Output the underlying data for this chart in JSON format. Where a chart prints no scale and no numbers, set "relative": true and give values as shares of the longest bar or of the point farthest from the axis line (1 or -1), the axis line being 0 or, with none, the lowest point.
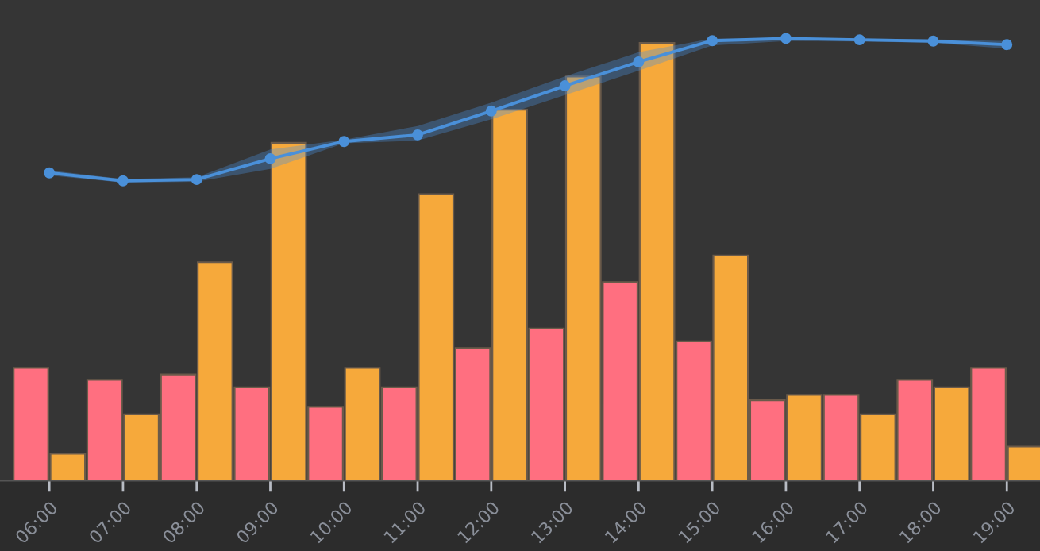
{
  "chart_data": {
    "type": "bar",
    "relative": true,
    "grid": false,
    "legend": false,
    "xlim": [
      5.33,
      19.45
    ],
    "xticks": [
      {
        "value": 6,
        "label": "06:00"
      },
      {
        "value": 7,
        "label": "07:00"
      },
      {
        "value": 8,
        "label": "08:00"
      },
      {
        "value": 9,
        "label": "09:00"
      },
      {
        "value": 10,
        "label": "10:00"
      },
      {
        "value": 11,
        "label": "11:00"
      },
      {
        "value": 12,
        "label": "12:00"
      },
      {
        "value": 13,
        "label": "13:00"
      },
      {
        "value": 14,
        "label": "14:00"
      },
      {
        "value": 15,
        "label": "15:00"
      },
      {
        "value": 16,
        "label": "16:00"
      },
      {
        "value": 17,
        "label": "17:00"
      },
      {
        "value": 18,
        "label": "18:00"
      },
      {
        "value": 19,
        "label": "19:00"
      }
    ],
    "series": [
      {
        "color": "#ff6f80",
        "x": [
          5.75,
          6.75,
          7.75,
          8.75,
          9.75,
          10.75,
          11.75,
          12.75,
          13.75,
          14.75,
          15.75,
          16.75,
          17.75,
          18.75
        ],
        "values": [
          0.255,
          0.228,
          0.24,
          0.211,
          0.167,
          0.211,
          0.3,
          0.344,
          0.449,
          0.315,
          0.182,
          0.194,
          0.228,
          0.255
        ]
      },
      {
        "color": "#f6a93b",
        "x": [
          6.25,
          7.25,
          8.25,
          9.25,
          10.25,
          11.25,
          12.25,
          13.25,
          14.25,
          15.25,
          16.25,
          17.25,
          18.25,
          19.25
        ],
        "values": [
          0.061,
          0.15,
          0.494,
          0.764,
          0.255,
          0.648,
          0.839,
          0.914,
          0.99,
          0.509,
          0.194,
          0.15,
          0.211,
          0.077
        ]
      },
      {
        "type": "line",
        "color": "#4a90d9",
        "marker": "circle",
        "line_style": "solid",
        "x": [
          6,
          7,
          8,
          9,
          10,
          11,
          12,
          13,
          14,
          15,
          16,
          17,
          18,
          19
        ],
        "values": [
          0.696,
          0.678,
          0.681,
          0.728,
          0.767,
          0.782,
          0.836,
          0.893,
          0.947,
          0.995,
          1.0,
          0.997,
          0.994,
          0.986
        ],
        "lower": [
          0.69,
          0.674,
          0.676,
          0.705,
          0.763,
          0.769,
          0.817,
          0.872,
          0.927,
          0.984,
          0.994,
          0.993,
          0.99,
          0.977
        ],
        "upper": [
          0.702,
          0.682,
          0.686,
          0.749,
          0.771,
          0.802,
          0.855,
          0.914,
          0.969,
          1.0,
          1.0,
          1.0,
          0.998,
          0.994
        ]
      }
    ]
  }
}
